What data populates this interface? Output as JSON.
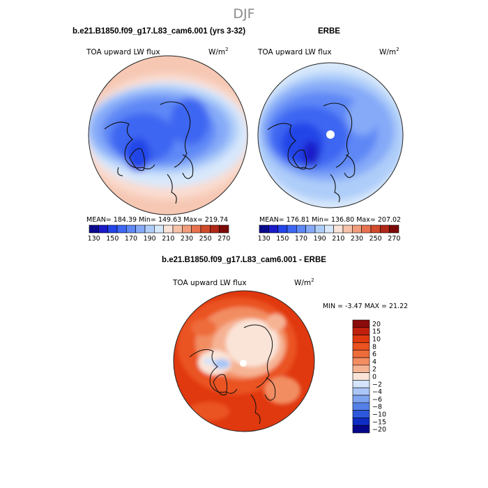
{
  "page_title": "DJF",
  "chart_data": [
    {
      "type": "heatmap",
      "projection": "north-polar-stereographic",
      "title": "b.e21.B1850.f09_g17.L83_cam6.001 (yrs 3-32)",
      "variable": "TOA upward LW flux",
      "units_base": "W/m",
      "units_exp": "2",
      "stats": {
        "mean_label": "MEAN=",
        "mean": "184.39",
        "min_label": "Min=",
        "min": "149.63",
        "max_label": "Max=",
        "max": "219.74"
      },
      "levels": [
        130,
        140,
        150,
        160,
        170,
        180,
        190,
        200,
        210,
        220,
        230,
        240,
        250,
        260,
        270
      ],
      "tick_labels": [
        "130",
        "150",
        "170",
        "190",
        "210",
        "230",
        "250",
        "270"
      ]
    },
    {
      "type": "heatmap",
      "projection": "north-polar-stereographic",
      "title": "ERBE",
      "variable": "TOA upward LW flux",
      "units_base": "W/m",
      "units_exp": "2",
      "stats": {
        "mean_label": "MEAN=",
        "mean": "176.81",
        "min_label": "Min=",
        "min": "136.80",
        "max_label": "Max=",
        "max": "207.02"
      },
      "levels": [
        130,
        140,
        150,
        160,
        170,
        180,
        190,
        200,
        210,
        220,
        230,
        240,
        250,
        260,
        270
      ],
      "tick_labels": [
        "130",
        "150",
        "170",
        "190",
        "210",
        "230",
        "250",
        "270"
      ]
    },
    {
      "type": "heatmap",
      "projection": "north-polar-stereographic",
      "title": "b.e21.B1850.f09_g17.L83_cam6.001 - ERBE",
      "variable": "TOA upward LW flux",
      "units_base": "W/m",
      "units_exp": "2",
      "stats": {
        "min_label": "MIN =",
        "min": "-3.47",
        "max_label": "MAX =",
        "max": "21.22"
      },
      "levels": [
        20,
        15,
        10,
        8,
        6,
        4,
        2,
        0,
        -2,
        -4,
        -6,
        -8,
        -10,
        -15,
        -20
      ],
      "tick_labels": [
        "20",
        "15",
        "10",
        "8",
        "6",
        "4",
        "2",
        "0",
        "−2",
        "−4",
        "−6",
        "−8",
        "−10",
        "−15",
        "−20"
      ]
    }
  ],
  "colors": {
    "abs_palette": [
      "#0a0a8c",
      "#1a1ac8",
      "#2244e8",
      "#3d66f2",
      "#5e88f6",
      "#86aaf8",
      "#aecdf9",
      "#d8e8fb",
      "#f8e4da",
      "#f6c3aa",
      "#f19d7b",
      "#e67250",
      "#d04a2c",
      "#b02818",
      "#7a0a08"
    ],
    "diff_palette": [
      "#8a0c0c",
      "#c2200f",
      "#e0380f",
      "#ea5220",
      "#ee6c3a",
      "#f28d62",
      "#f6b394",
      "#fae4d8",
      "#d4e4fb",
      "#aac6f6",
      "#7fa4ef",
      "#5580e8",
      "#2d58dc",
      "#0e2cc4",
      "#06068a"
    ]
  }
}
